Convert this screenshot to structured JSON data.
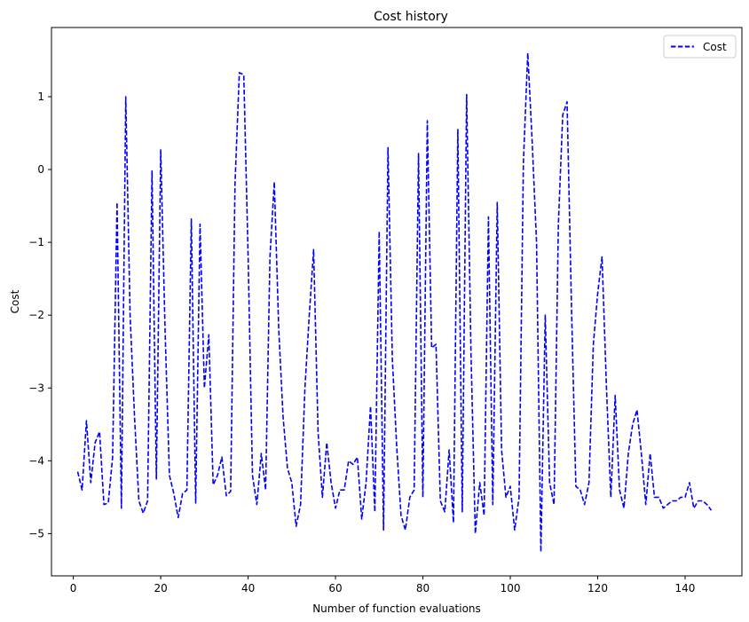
{
  "chart_data": {
    "type": "line",
    "title": "Cost history",
    "xlabel": "Number of function evaluations",
    "ylabel": "Cost",
    "xlim": [
      -5,
      153
    ],
    "ylim": [
      -5.58,
      1.95
    ],
    "xticks": [
      0,
      20,
      40,
      60,
      80,
      100,
      120,
      140
    ],
    "yticks": [
      -5,
      -4,
      -3,
      -2,
      -1,
      0,
      1
    ],
    "grid": false,
    "legend": {
      "position": "top-right"
    },
    "series": [
      {
        "name": "Cost",
        "color": "#0000ff",
        "style": "dashed",
        "x": [
          1,
          2,
          3,
          4,
          5,
          6,
          7,
          8,
          9,
          10,
          11,
          12,
          13,
          14,
          15,
          16,
          17,
          18,
          19,
          20,
          21,
          22,
          23,
          24,
          25,
          26,
          27,
          28,
          29,
          30,
          31,
          32,
          33,
          34,
          35,
          36,
          37,
          38,
          39,
          40,
          41,
          42,
          43,
          44,
          45,
          46,
          47,
          48,
          49,
          50,
          51,
          52,
          53,
          54,
          55,
          56,
          57,
          58,
          59,
          60,
          61,
          62,
          63,
          64,
          65,
          66,
          67,
          68,
          69,
          70,
          71,
          72,
          73,
          74,
          75,
          76,
          77,
          78,
          79,
          80,
          81,
          82,
          83,
          84,
          85,
          86,
          87,
          88,
          89,
          90,
          91,
          92,
          93,
          94,
          95,
          96,
          97,
          98,
          99,
          100,
          101,
          102,
          103,
          104,
          105,
          106,
          107,
          108,
          109,
          110,
          111,
          112,
          113,
          114,
          115,
          116,
          117,
          118,
          119,
          120,
          121,
          122,
          123,
          124,
          125,
          126,
          127,
          128,
          129,
          130,
          131,
          132,
          133,
          134,
          135,
          136,
          137,
          138,
          139,
          140,
          141,
          142,
          143,
          144,
          145,
          146
        ],
        "y": [
          -4.15,
          -4.4,
          -3.45,
          -4.3,
          -3.75,
          -3.6,
          -4.6,
          -4.58,
          -3.95,
          -0.45,
          -4.65,
          1.0,
          -2.0,
          -3.4,
          -4.55,
          -4.72,
          -4.55,
          -0.02,
          -4.25,
          0.27,
          -2.2,
          -4.2,
          -4.45,
          -4.78,
          -4.45,
          -4.4,
          -0.68,
          -4.58,
          -0.75,
          -3.0,
          -2.27,
          -4.33,
          -4.2,
          -3.95,
          -4.48,
          -4.42,
          -0.2,
          1.33,
          1.3,
          -1.2,
          -4.2,
          -4.6,
          -3.9,
          -4.4,
          -1.2,
          -0.17,
          -2.2,
          -3.4,
          -4.1,
          -4.3,
          -4.9,
          -4.6,
          -3.0,
          -2.0,
          -1.1,
          -3.6,
          -4.5,
          -3.75,
          -4.3,
          -4.65,
          -4.4,
          -4.4,
          -4.0,
          -4.05,
          -3.95,
          -4.8,
          -4.3,
          -3.25,
          -4.7,
          -0.85,
          -4.95,
          0.3,
          -2.6,
          -3.8,
          -4.75,
          -4.95,
          -4.5,
          -4.4,
          0.22,
          -4.5,
          0.67,
          -2.45,
          -2.4,
          -4.55,
          -4.7,
          -3.85,
          -4.85,
          0.55,
          -4.7,
          1.03,
          -2.5,
          -5.0,
          -4.3,
          -4.75,
          -0.65,
          -4.6,
          -0.45,
          -3.85,
          -4.5,
          -4.35,
          -4.95,
          -4.5,
          0.1,
          1.6,
          0.4,
          -1.0,
          -5.25,
          -2.0,
          -4.3,
          -4.6,
          -0.75,
          0.75,
          0.93,
          -1.9,
          -4.35,
          -4.4,
          -4.6,
          -4.3,
          -2.4,
          -1.7,
          -1.2,
          -3.0,
          -4.5,
          -3.1,
          -4.4,
          -4.65,
          -3.9,
          -3.5,
          -3.3,
          -3.9,
          -4.6,
          -3.9,
          -4.5,
          -4.5,
          -4.65,
          -4.6,
          -4.55,
          -4.55,
          -4.5,
          -4.5,
          -4.3,
          -4.65,
          -4.55,
          -4.55,
          -4.6,
          -4.68
        ]
      }
    ]
  }
}
